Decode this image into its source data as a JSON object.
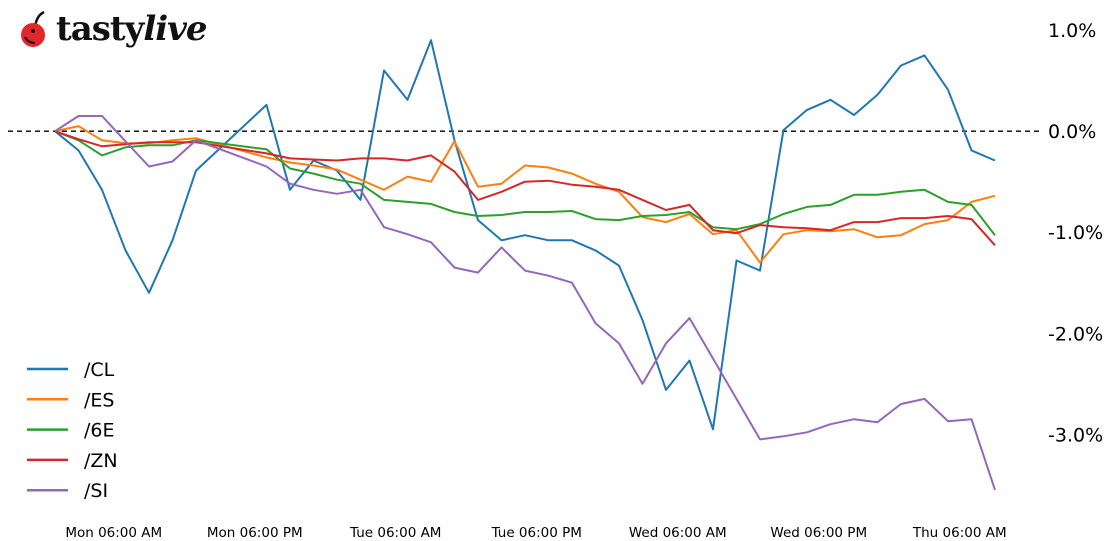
{
  "logo": {
    "brand": "tasty",
    "brand_italic": "live",
    "icon": "cherry-icon"
  },
  "chart_data": {
    "type": "line",
    "title": "",
    "xlabel": "",
    "ylabel": "",
    "x_tick_labels": [
      "Mon 06:00 AM",
      "Mon 06:00 PM",
      "Tue 06:00 AM",
      "Tue 06:00 PM",
      "Wed 06:00 AM",
      "Wed 06:00 PM",
      "Thu 06:00 AM"
    ],
    "x_ticks": [
      "Mon 06:00",
      "Mon 18:00",
      "Tue 06:00",
      "Tue 18:00",
      "Wed 06:00",
      "Wed 18:00",
      "Thu 06:00"
    ],
    "xlim": [
      "Mon 01:00",
      "Thu 09:00"
    ],
    "y_tick_labels": [
      "1.0%",
      "0.0%",
      "-1.0%",
      "-2.0%",
      "-3.0%"
    ],
    "y_ticks": [
      1,
      0,
      -1,
      -2,
      -3
    ],
    "y_unit": "%",
    "ylim": [
      -3.65,
      1.1
    ],
    "y_axis_side": "right",
    "reference_line": {
      "y": 0,
      "style": "dashed",
      "color": "#000000"
    },
    "grid": false,
    "legend_position": "bottom-left",
    "x": [
      "Mon 01:00",
      "Mon 03:00",
      "Mon 05:00",
      "Mon 07:00",
      "Mon 09:00",
      "Mon 11:00",
      "Mon 13:00",
      "Mon 19:00",
      "Mon 21:00",
      "Mon 23:00",
      "Tue 01:00",
      "Tue 03:00",
      "Tue 05:00",
      "Tue 07:00",
      "Tue 09:00",
      "Tue 11:00",
      "Tue 13:00",
      "Tue 15:00",
      "Tue 17:00",
      "Tue 19:00",
      "Tue 21:00",
      "Tue 23:00",
      "Wed 01:00",
      "Wed 03:00",
      "Wed 05:00",
      "Wed 07:00",
      "Wed 09:00",
      "Wed 11:00",
      "Wed 13:00",
      "Wed 15:00",
      "Wed 17:00",
      "Wed 19:00",
      "Wed 21:00",
      "Wed 23:00",
      "Thu 01:00",
      "Thu 03:00",
      "Thu 05:00",
      "Thu 07:00",
      "Thu 09:00"
    ],
    "series": [
      {
        "name": "/CL",
        "color": "#1f77b4",
        "values": [
          0,
          -0.19,
          -0.58,
          -1.18,
          -1.6,
          -1.08,
          -0.39,
          0.26,
          -0.58,
          -0.29,
          -0.39,
          -0.68,
          0.6,
          0.31,
          0.9,
          -0.09,
          -0.88,
          -1.08,
          -1.03,
          -1.08,
          -1.08,
          -1.18,
          -1.33,
          -1.87,
          -2.56,
          -2.27,
          -2.95,
          -1.28,
          -1.38,
          0.01,
          0.21,
          0.31,
          0.16,
          0.36,
          0.65,
          0.75,
          0.41,
          -0.19,
          -0.29
        ]
      },
      {
        "name": "/ES",
        "color": "#ff7f0e",
        "values": [
          0,
          0.05,
          -0.09,
          -0.12,
          -0.12,
          -0.09,
          -0.07,
          -0.26,
          -0.31,
          -0.34,
          -0.38,
          -0.48,
          -0.58,
          -0.45,
          -0.5,
          -0.1,
          -0.55,
          -0.52,
          -0.34,
          -0.36,
          -0.42,
          -0.52,
          -0.6,
          -0.85,
          -0.9,
          -0.82,
          -1.02,
          -0.98,
          -1.3,
          -1.02,
          -0.98,
          -0.99,
          -0.97,
          -1.05,
          -1.03,
          -0.92,
          -0.88,
          -0.7,
          -0.64
        ]
      },
      {
        "name": "/6E",
        "color": "#2ca02c",
        "values": [
          0,
          -0.09,
          -0.24,
          -0.16,
          -0.14,
          -0.14,
          -0.09,
          -0.18,
          -0.37,
          -0.42,
          -0.48,
          -0.52,
          -0.68,
          -0.7,
          -0.72,
          -0.8,
          -0.84,
          -0.83,
          -0.8,
          -0.8,
          -0.79,
          -0.87,
          -0.88,
          -0.84,
          -0.83,
          -0.8,
          -0.95,
          -0.97,
          -0.92,
          -0.82,
          -0.75,
          -0.73,
          -0.63,
          -0.63,
          -0.6,
          -0.58,
          -0.7,
          -0.73,
          -1.03
        ]
      },
      {
        "name": "/ZN",
        "color": "#d62728",
        "values": [
          0,
          -0.08,
          -0.15,
          -0.13,
          -0.11,
          -0.11,
          -0.11,
          -0.22,
          -0.27,
          -0.28,
          -0.29,
          -0.27,
          -0.27,
          -0.29,
          -0.24,
          -0.4,
          -0.68,
          -0.6,
          -0.5,
          -0.49,
          -0.53,
          -0.55,
          -0.58,
          -0.68,
          -0.78,
          -0.73,
          -0.98,
          -1.01,
          -0.93,
          -0.95,
          -0.96,
          -0.98,
          -0.9,
          -0.9,
          -0.86,
          -0.86,
          -0.84,
          -0.87,
          -1.13
        ]
      },
      {
        "name": "/SI",
        "color": "#9467bd",
        "values": [
          0,
          0.15,
          0.15,
          -0.1,
          -0.35,
          -0.3,
          -0.09,
          -0.35,
          -0.52,
          -0.58,
          -0.62,
          -0.58,
          -0.95,
          -1.02,
          -1.1,
          -1.35,
          -1.4,
          -1.15,
          -1.38,
          -1.43,
          -1.5,
          -1.9,
          -2.1,
          -2.5,
          -2.1,
          -1.85,
          -2.25,
          -2.65,
          -3.05,
          -3.02,
          -2.98,
          -2.9,
          -2.85,
          -2.88,
          -2.7,
          -2.65,
          -2.87,
          -2.85,
          -3.55
        ]
      }
    ]
  }
}
